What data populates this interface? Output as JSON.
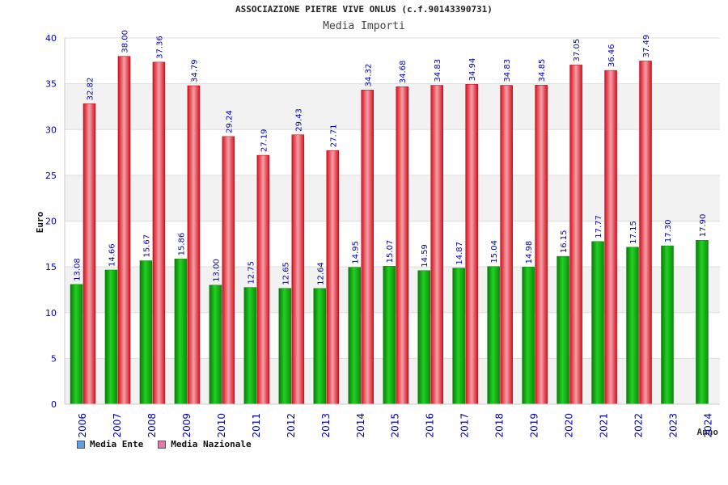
{
  "header": {
    "title": "ASSOCIAZIONE PIETRE VIVE ONLUS (c.f.90143390731)",
    "subtitle": "Media Importi"
  },
  "legend": {
    "items": [
      {
        "label": "Media Ente",
        "color": "#5aa0e6"
      },
      {
        "label": "Media Nazionale",
        "color": "#e07aa6"
      }
    ]
  },
  "colors": {
    "ente_bar": "#11b511",
    "nazionale_bar": "#e8323c",
    "axis_text": "#0000aa",
    "value_label": "#0000aa"
  },
  "chart_data": {
    "type": "bar",
    "ylabel": "Euro",
    "xlabel": "Anno",
    "ylim": [
      0,
      40
    ],
    "yticks": [
      0,
      5,
      10,
      15,
      20,
      25,
      30,
      35,
      40
    ],
    "grid": true,
    "legend_position": "bottom-left",
    "categories": [
      "2006",
      "2007",
      "2008",
      "2009",
      "2010",
      "2011",
      "2012",
      "2013",
      "2014",
      "2015",
      "2016",
      "2017",
      "2018",
      "2019",
      "2020",
      "2021",
      "2022",
      "2023",
      "2024"
    ],
    "series": [
      {
        "name": "Media Ente",
        "values": [
          13.08,
          14.66,
          15.67,
          15.86,
          13.0,
          12.75,
          12.65,
          12.64,
          14.95,
          15.07,
          14.59,
          14.87,
          15.04,
          14.98,
          16.15,
          17.77,
          17.15,
          17.3,
          17.9
        ],
        "labels": [
          "13.08",
          "14.66",
          "15.67",
          "15.86",
          "13.00",
          "12.75",
          "12.65",
          "12.64",
          "14.95",
          "15.07",
          "14.59",
          "14.87",
          "15.04",
          "14.98",
          "16.15",
          "17.77",
          "17.15",
          "17.30",
          "17.90"
        ]
      },
      {
        "name": "Media Nazionale",
        "values": [
          32.82,
          38.0,
          37.36,
          34.79,
          29.24,
          27.19,
          29.43,
          27.71,
          34.32,
          34.68,
          34.83,
          34.94,
          34.83,
          34.85,
          37.05,
          36.46,
          37.49,
          null,
          null
        ],
        "labels": [
          "32.82",
          "38.00",
          "37.36",
          "34.79",
          "29.24",
          "27.19",
          "29.43",
          "27.71",
          "34.32",
          "34.68",
          "34.83",
          "34.94",
          "34.83",
          "34.85",
          "37.05",
          "36.46",
          "37.49",
          "",
          ""
        ]
      }
    ]
  }
}
